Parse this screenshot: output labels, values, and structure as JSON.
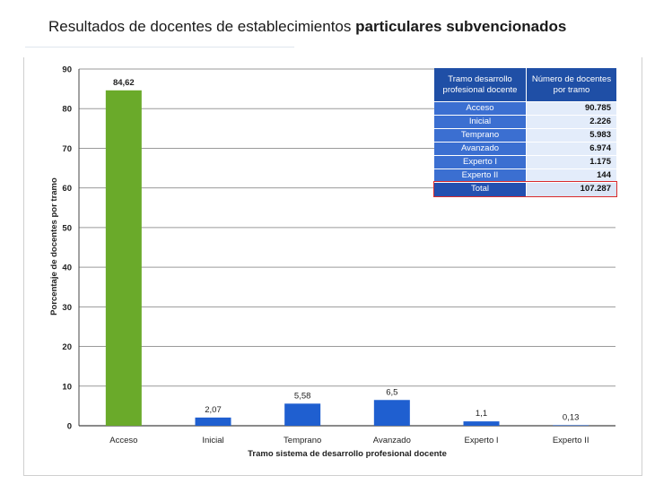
{
  "title": {
    "plain": "Resultados de docentes de establecimientos ",
    "bold": "particulares subvencionados"
  },
  "table": {
    "header": [
      "Tramo desarrollo profesional docente",
      "Número de docentes por tramo"
    ],
    "rows": [
      {
        "tramo": "Acceso",
        "docentes": "90.785"
      },
      {
        "tramo": "Inicial",
        "docentes": "2.226"
      },
      {
        "tramo": "Temprano",
        "docentes": "5.983"
      },
      {
        "tramo": "Avanzado",
        "docentes": "6.974"
      },
      {
        "tramo": "Experto I",
        "docentes": "1.175"
      },
      {
        "tramo": "Experto II",
        "docentes": "144"
      }
    ],
    "total": {
      "tramo": "Total",
      "docentes": "107.287"
    }
  },
  "chart_data": {
    "type": "bar",
    "title": "Resultados de docentes de establecimientos particulares subvencionados",
    "xlabel": "Tramo sistema de desarrollo profesional docente",
    "ylabel": "Porcentaje de docentes por tramo",
    "categories": [
      "Acceso",
      "Inicial",
      "Temprano",
      "Avanzado",
      "Experto I",
      "Experto II"
    ],
    "values": [
      84.62,
      2.07,
      5.58,
      6.5,
      1.1,
      0.13
    ],
    "value_labels": [
      "84,62",
      "2,07",
      "5,58",
      "6,5",
      "1,1",
      "0,13"
    ],
    "yticks": [
      0,
      10,
      20,
      30,
      40,
      50,
      60,
      70,
      80,
      90
    ],
    "ylim": [
      0,
      90
    ],
    "grid": true,
    "legend": "none",
    "colors": {
      "highlight": "#6aaa2a",
      "bar": "#1f5fd0",
      "grid": "#9a9a9a",
      "table_header": "#1f4fa6",
      "table_cell": "#3b6fd1",
      "total_outline": "#d92b2b"
    }
  }
}
